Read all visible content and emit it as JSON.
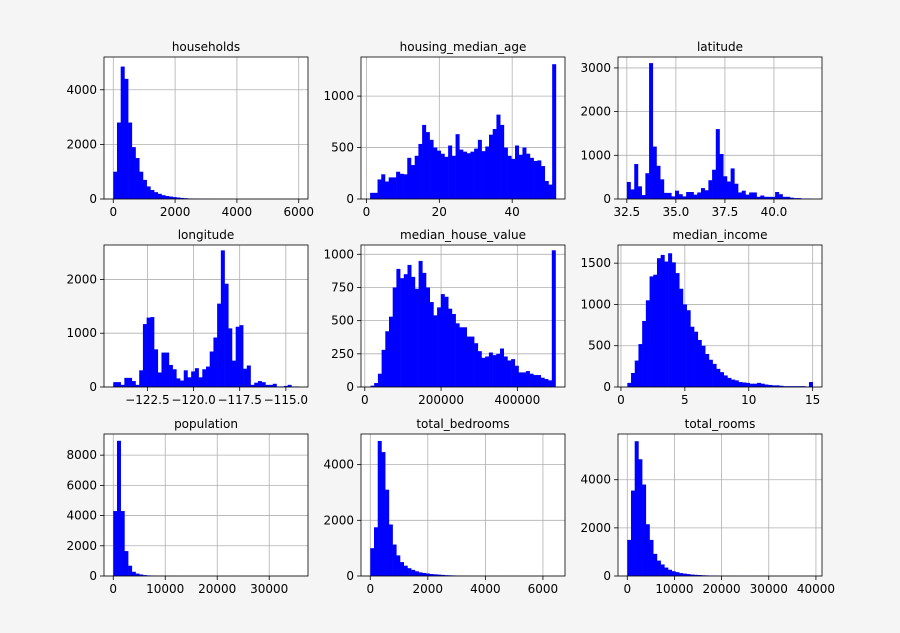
{
  "colors": {
    "bar": "#0000ff",
    "grid": "#b0b0b0",
    "axes_bg": "#ffffff",
    "figure_bg": "#f5f5f5"
  },
  "chart_data": [
    {
      "type": "bar",
      "title": "households",
      "bins": 50,
      "xlim": [
        -300,
        6300
      ],
      "ylim": [
        0,
        5200
      ],
      "x_ticks": [
        0,
        2000,
        4000,
        6000
      ],
      "x_tick_labels": [
        "0",
        "2000",
        "4000",
        "6000"
      ],
      "y_ticks": [
        0,
        2000,
        4000
      ],
      "y_tick_labels": [
        "0",
        "2000",
        "4000"
      ],
      "grid": true,
      "bin_edges": [
        0,
        120,
        240,
        360,
        480,
        600,
        720,
        840,
        960,
        1080,
        1200,
        1320,
        1440,
        1560,
        1680,
        1800,
        1920,
        2040,
        2160,
        2280,
        2400,
        2520,
        2640,
        2760,
        2880,
        3000,
        3120,
        3240,
        3360,
        3480,
        3600,
        3720,
        3840,
        3960,
        4080,
        4200,
        4320,
        4440,
        4560,
        4680,
        4800,
        4920,
        5040,
        5160,
        5280,
        5400,
        5520,
        5640,
        5760,
        5880,
        6000
      ],
      "counts": [
        1000,
        2800,
        4850,
        4400,
        2800,
        1900,
        1500,
        1000,
        700,
        460,
        330,
        250,
        190,
        140,
        110,
        90,
        70,
        55,
        40,
        30,
        20,
        15,
        10,
        8,
        6,
        5,
        4,
        3,
        3,
        2,
        2,
        2,
        1,
        1,
        1,
        1,
        1,
        1,
        1,
        0,
        0,
        0,
        0,
        0,
        0,
        0,
        0,
        0,
        0,
        1
      ]
    },
    {
      "type": "bar",
      "title": "housing_median_age",
      "bins": 50,
      "xlim": [
        -1.5,
        54.5
      ],
      "ylim": [
        0,
        1380
      ],
      "x_ticks": [
        0,
        20,
        40
      ],
      "x_tick_labels": [
        "0",
        "20",
        "40"
      ],
      "y_ticks": [
        0,
        500,
        1000
      ],
      "y_tick_labels": [
        "0",
        "500",
        "1000"
      ],
      "grid": true,
      "bin_edges": [
        1.0,
        2.02,
        3.04,
        4.06,
        5.08,
        6.1,
        7.12,
        8.14,
        9.16,
        10.18,
        11.2,
        12.22,
        13.24,
        14.26,
        15.28,
        16.3,
        17.32,
        18.34,
        19.36,
        20.38,
        21.4,
        22.42,
        23.44,
        24.46,
        25.48,
        26.5,
        27.52,
        28.54,
        29.56,
        30.58,
        31.6,
        32.62,
        33.64,
        34.66,
        35.68,
        36.7,
        37.72,
        38.74,
        39.76,
        40.78,
        41.8,
        42.82,
        43.84,
        44.86,
        45.88,
        46.9,
        47.92,
        48.94,
        49.96,
        50.98,
        52.0
      ],
      "counts": [
        60,
        60,
        190,
        240,
        170,
        210,
        210,
        265,
        245,
        240,
        400,
        330,
        420,
        535,
        720,
        650,
        575,
        500,
        470,
        440,
        410,
        520,
        420,
        630,
        480,
        460,
        445,
        460,
        490,
        575,
        465,
        510,
        625,
        680,
        820,
        720,
        500,
        420,
        390,
        520,
        430,
        500,
        440,
        400,
        370,
        375,
        320,
        175,
        140,
        1310
      ]
    },
    {
      "type": "bar",
      "title": "latitude",
      "bins": 50,
      "xlim": [
        32.05,
        42.45
      ],
      "ylim": [
        0,
        3250
      ],
      "x_ticks": [
        32.5,
        35.0,
        37.5,
        40.0
      ],
      "x_tick_labels": [
        "32.5",
        "35.0",
        "37.5",
        "40.0"
      ],
      "y_ticks": [
        0,
        1000,
        2000,
        3000
      ],
      "y_tick_labels": [
        "0",
        "1000",
        "2000",
        "3000"
      ],
      "grid": true,
      "bin_edges": [
        32.5,
        32.689,
        32.878,
        33.067,
        33.256,
        33.445,
        33.634,
        33.823,
        34.012,
        34.201,
        34.39,
        34.579,
        34.768,
        34.957,
        35.146,
        35.335,
        35.524,
        35.713,
        35.902,
        36.091,
        36.28,
        36.469,
        36.658,
        36.847,
        37.036,
        37.225,
        37.414,
        37.603,
        37.792,
        37.981,
        38.17,
        38.359,
        38.548,
        38.737,
        38.926,
        39.115,
        39.304,
        39.493,
        39.682,
        39.871,
        40.06,
        40.249,
        40.438,
        40.627,
        40.816,
        41.005,
        41.194,
        41.383,
        41.572,
        41.761,
        41.95
      ],
      "counts": [
        390,
        220,
        800,
        290,
        90,
        590,
        3110,
        1200,
        760,
        450,
        140,
        140,
        60,
        190,
        110,
        60,
        160,
        160,
        100,
        150,
        250,
        200,
        430,
        670,
        1600,
        1030,
        520,
        400,
        700,
        350,
        150,
        190,
        100,
        150,
        150,
        50,
        80,
        50,
        50,
        50,
        160,
        110,
        50,
        50,
        30,
        20,
        20,
        10,
        10,
        10
      ]
    },
    {
      "type": "bar",
      "title": "longitude",
      "bins": 50,
      "xlim": [
        -124.85,
        -113.8
      ],
      "ylim": [
        0,
        2640
      ],
      "x_ticks": [
        -122.5,
        -120.0,
        -117.5,
        -115.0
      ],
      "x_tick_labels": [
        "−122.5",
        "−120.0",
        "−117.5",
        "−115.0"
      ],
      "y_ticks": [
        0,
        1000,
        2000
      ],
      "y_tick_labels": [
        "0",
        "1000",
        "2000"
      ],
      "grid": true,
      "bin_edges": [
        -124.35,
        -124.149,
        -123.948,
        -123.747,
        -123.546,
        -123.345,
        -123.144,
        -122.943,
        -122.742,
        -122.541,
        -122.34,
        -122.139,
        -121.938,
        -121.737,
        -121.536,
        -121.335,
        -121.134,
        -120.933,
        -120.732,
        -120.531,
        -120.33,
        -120.129,
        -119.928,
        -119.727,
        -119.526,
        -119.325,
        -119.124,
        -118.923,
        -118.722,
        -118.521,
        -118.32,
        -118.119,
        -117.918,
        -117.717,
        -117.516,
        -117.315,
        -117.114,
        -116.913,
        -116.712,
        -116.511,
        -116.31,
        -116.109,
        -115.908,
        -115.707,
        -115.506,
        -115.305,
        -115.104,
        -114.903,
        -114.702,
        -114.501,
        -114.31
      ],
      "counts": [
        90,
        90,
        40,
        170,
        170,
        110,
        40,
        310,
        1170,
        1290,
        1300,
        700,
        270,
        640,
        640,
        410,
        330,
        160,
        120,
        310,
        180,
        290,
        350,
        180,
        330,
        380,
        660,
        920,
        1550,
        2540,
        1920,
        1090,
        490,
        1120,
        1150,
        340,
        400,
        40,
        80,
        110,
        90,
        40,
        40,
        60,
        10,
        10,
        20,
        40,
        10,
        10
      ]
    },
    {
      "type": "bar",
      "title": "median_house_value",
      "bins": 50,
      "xlim": [
        -9900,
        524900
      ],
      "ylim": [
        0,
        1070
      ],
      "x_ticks": [
        0,
        200000,
        400000
      ],
      "x_tick_labels": [
        "0",
        "200000",
        "400000"
      ],
      "y_ticks": [
        0,
        250,
        500,
        750,
        1000
      ],
      "y_tick_labels": [
        "0",
        "250",
        "500",
        "750",
        "1000"
      ],
      "grid": true,
      "bin_edges": [
        14999,
        24700,
        34400,
        44100,
        53800,
        63500,
        73200,
        82900,
        92600,
        102300,
        112000,
        121700,
        131400,
        141100,
        150800,
        160500,
        170200,
        179900,
        189600,
        199300,
        209000,
        218700,
        228400,
        238100,
        247800,
        257500,
        267200,
        276900,
        286600,
        296300,
        306000,
        315700,
        325400,
        335100,
        344800,
        354500,
        364200,
        373900,
        383600,
        393300,
        403000,
        412700,
        422400,
        432100,
        441800,
        451500,
        461200,
        470900,
        480600,
        490300,
        500001
      ],
      "counts": [
        10,
        30,
        100,
        280,
        420,
        530,
        750,
        890,
        820,
        850,
        920,
        830,
        740,
        950,
        860,
        750,
        640,
        540,
        600,
        700,
        680,
        590,
        550,
        480,
        450,
        450,
        380,
        380,
        330,
        270,
        220,
        230,
        260,
        240,
        250,
        290,
        230,
        200,
        210,
        160,
        110,
        110,
        120,
        100,
        90,
        90,
        70,
        60,
        50,
        1030
      ]
    },
    {
      "type": "bar",
      "title": "median_income",
      "bins": 50,
      "xlim": [
        -0.23,
        15.73
      ],
      "ylim": [
        0,
        1720
      ],
      "x_ticks": [
        0,
        5,
        10,
        15
      ],
      "x_tick_labels": [
        "0",
        "5",
        "10",
        "15"
      ],
      "y_ticks": [
        0,
        500,
        1000,
        1500
      ],
      "y_tick_labels": [
        "0",
        "500",
        "1000",
        "1500"
      ],
      "grid": true,
      "bin_edges": [
        0.4999,
        0.79,
        1.08,
        1.37,
        1.66,
        1.95,
        2.24,
        2.53,
        2.82,
        3.11,
        3.4,
        3.69,
        3.98,
        4.27,
        4.56,
        4.85,
        5.14,
        5.43,
        5.72,
        6.01,
        6.3,
        6.59,
        6.88,
        7.17,
        7.46,
        7.75,
        8.04,
        8.33,
        8.62,
        8.91,
        9.2,
        9.49,
        9.78,
        10.07,
        10.36,
        10.65,
        10.94,
        11.23,
        11.52,
        11.81,
        12.1,
        12.39,
        12.68,
        12.97,
        13.26,
        13.55,
        13.84,
        14.13,
        14.42,
        14.71,
        15.0001
      ],
      "counts": [
        50,
        170,
        320,
        520,
        800,
        1050,
        1340,
        1360,
        1560,
        1600,
        1520,
        1620,
        1510,
        1380,
        1190,
        1000,
        930,
        730,
        670,
        570,
        500,
        400,
        330,
        280,
        220,
        180,
        140,
        110,
        90,
        80,
        60,
        55,
        50,
        40,
        40,
        50,
        40,
        30,
        25,
        20,
        20,
        15,
        10,
        10,
        10,
        10,
        10,
        10,
        5,
        60
      ]
    },
    {
      "type": "bar",
      "title": "population",
      "bins": 50,
      "xlim": [
        -1780,
        37460
      ],
      "ylim": [
        0,
        9400
      ],
      "x_ticks": [
        0,
        10000,
        20000,
        30000
      ],
      "x_tick_labels": [
        "0",
        "10000",
        "20000",
        "30000"
      ],
      "y_ticks": [
        0,
        2000,
        4000,
        6000,
        8000
      ],
      "y_tick_labels": [
        "0",
        "2000",
        "4000",
        "6000",
        "8000"
      ],
      "grid": true,
      "bin_edges": [
        3,
        716,
        1429,
        2142,
        2855,
        3568,
        4281,
        4994,
        5707,
        6420,
        7133,
        7846,
        8559,
        9272,
        9985,
        10698,
        11411,
        12124,
        12837,
        13550,
        14263,
        14976,
        15689,
        16402,
        17115,
        17828,
        18541,
        19254,
        19967,
        20680,
        21393,
        22106,
        22819,
        23532,
        24245,
        24958,
        25671,
        26384,
        27097,
        27810,
        28523,
        29236,
        29949,
        30662,
        31375,
        32088,
        32801,
        33514,
        34227,
        34940,
        35682
      ],
      "counts": [
        4300,
        8950,
        4300,
        1650,
        680,
        280,
        160,
        100,
        60,
        40,
        30,
        20,
        15,
        10,
        8,
        6,
        5,
        4,
        3,
        2,
        2,
        1,
        1,
        1,
        1,
        1,
        1,
        0,
        0,
        0,
        0,
        0,
        1,
        0,
        0,
        0,
        0,
        0,
        0,
        0,
        0,
        0,
        0,
        0,
        0,
        0,
        0,
        0,
        0,
        1
      ]
    },
    {
      "type": "bar",
      "title": "total_bedrooms",
      "bins": 50,
      "xlim": [
        -322,
        6767
      ],
      "ylim": [
        0,
        5100
      ],
      "x_ticks": [
        0,
        2000,
        4000,
        6000
      ],
      "x_tick_labels": [
        "0",
        "2000",
        "4000",
        "6000"
      ],
      "y_ticks": [
        0,
        2000,
        4000
      ],
      "y_tick_labels": [
        "0",
        "2000",
        "4000"
      ],
      "grid": true,
      "bin_edges": [
        1,
        130,
        259,
        388,
        517,
        646,
        775,
        904,
        1033,
        1162,
        1291,
        1420,
        1549,
        1678,
        1807,
        1936,
        2065,
        2194,
        2323,
        2452,
        2581,
        2710,
        2839,
        2968,
        3097,
        3226,
        3355,
        3484,
        3613,
        3742,
        3871,
        4000,
        4129,
        4258,
        4387,
        4516,
        4645,
        4774,
        4903,
        5032,
        5161,
        5290,
        5419,
        5548,
        5677,
        5806,
        5935,
        6064,
        6193,
        6322,
        6445
      ],
      "counts": [
        1000,
        1750,
        4850,
        4450,
        3100,
        1850,
        1130,
        740,
        500,
        370,
        280,
        220,
        170,
        130,
        110,
        90,
        70,
        60,
        50,
        40,
        30,
        25,
        20,
        15,
        10,
        8,
        6,
        5,
        4,
        3,
        3,
        2,
        2,
        2,
        1,
        1,
        1,
        1,
        1,
        1,
        0,
        0,
        0,
        0,
        0,
        0,
        0,
        0,
        0,
        1
      ]
    },
    {
      "type": "bar",
      "title": "total_rooms",
      "bins": 50,
      "xlim": [
        -1967,
        41287
      ],
      "ylim": [
        0,
        5900
      ],
      "x_ticks": [
        0,
        10000,
        20000,
        30000,
        40000
      ],
      "x_tick_labels": [
        "0",
        "10000",
        "20000",
        "30000",
        "40000"
      ],
      "y_ticks": [
        0,
        2000,
        4000
      ],
      "y_tick_labels": [
        "0",
        "2000",
        "4000"
      ],
      "grid": true,
      "bin_edges": [
        2,
        787,
        1572,
        2357,
        3142,
        3927,
        4712,
        5497,
        6282,
        7067,
        7852,
        8637,
        9422,
        10207,
        10992,
        11777,
        12562,
        13347,
        14132,
        14917,
        15702,
        16487,
        17272,
        18057,
        18842,
        19627,
        20412,
        21197,
        21982,
        22767,
        23552,
        24337,
        25122,
        25907,
        26692,
        27477,
        28262,
        29047,
        29832,
        30617,
        31402,
        32187,
        32972,
        33757,
        34542,
        35327,
        36112,
        36897,
        37682,
        38467,
        39320
      ],
      "counts": [
        1500,
        3550,
        5600,
        4850,
        3800,
        2150,
        1500,
        920,
        640,
        480,
        350,
        260,
        200,
        160,
        120,
        100,
        80,
        60,
        50,
        40,
        30,
        25,
        20,
        15,
        10,
        8,
        6,
        5,
        4,
        3,
        3,
        2,
        2,
        2,
        1,
        1,
        1,
        1,
        1,
        1,
        0,
        0,
        0,
        0,
        0,
        0,
        0,
        0,
        0,
        1
      ]
    }
  ]
}
